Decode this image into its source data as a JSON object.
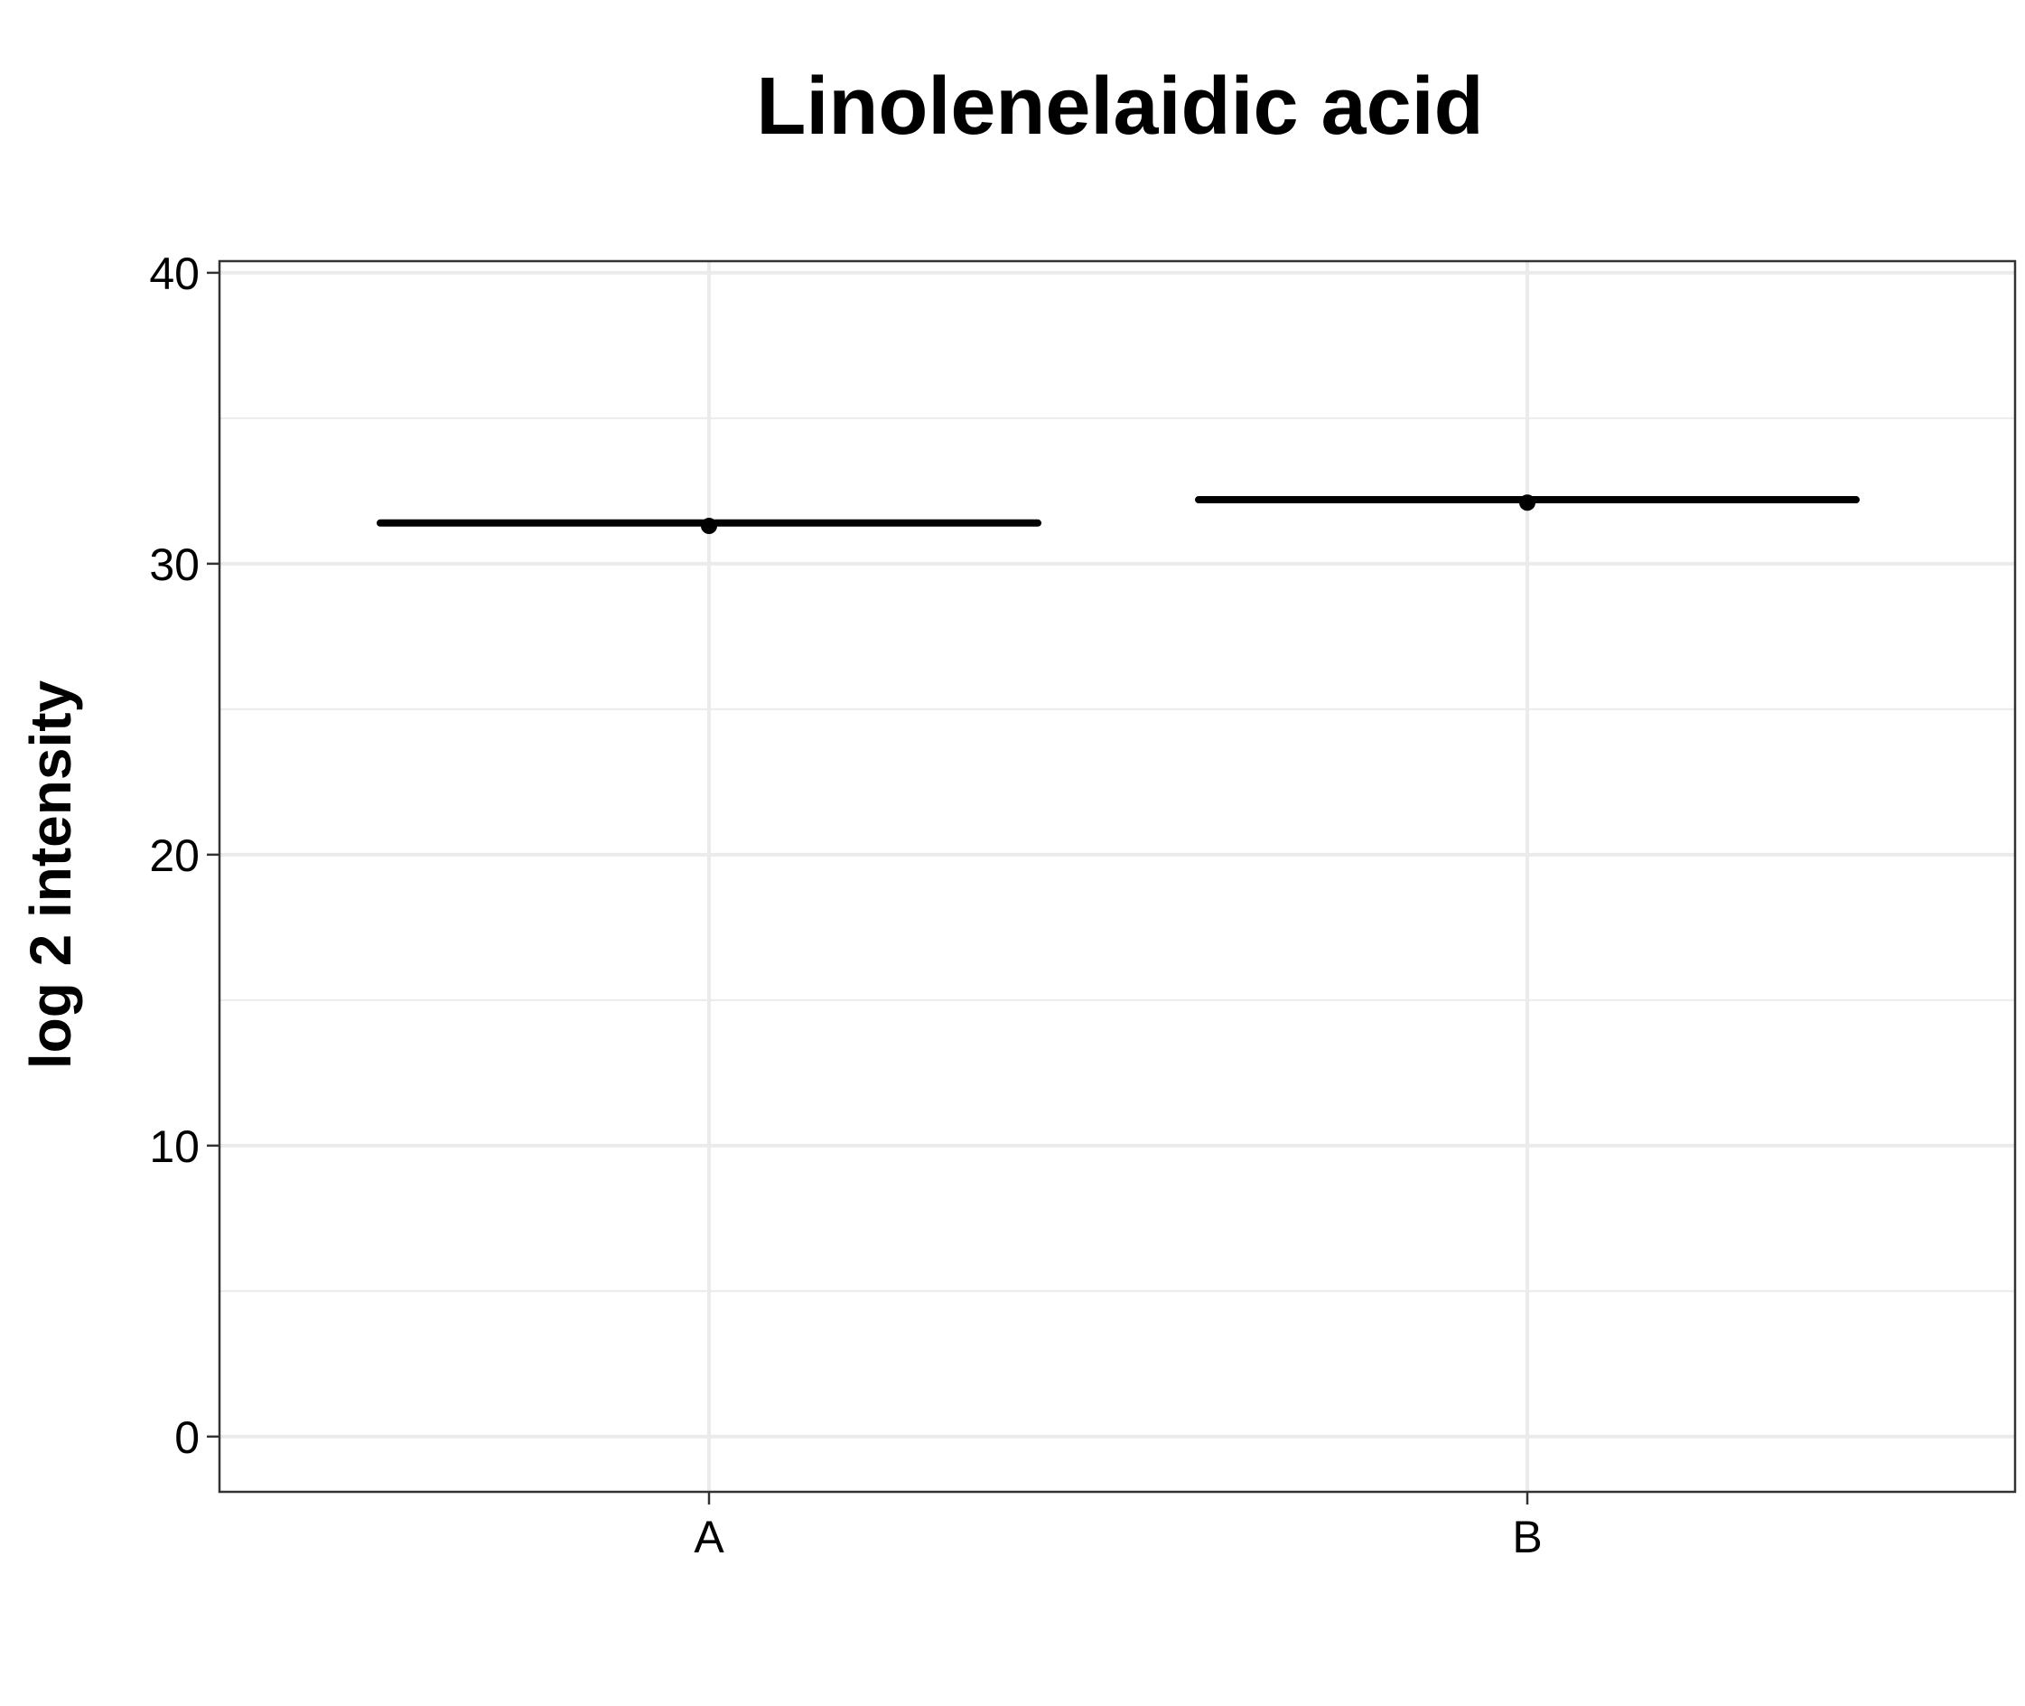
{
  "chart_data": {
    "type": "scatter",
    "title": "Linolenelaidic acid",
    "xlabel": "",
    "ylabel": "log 2 intensity",
    "categories": [
      "A",
      "B"
    ],
    "series": [
      {
        "values": [
          31.3,
          32.1
        ]
      }
    ],
    "median_lines": [
      31.4,
      32.2
    ],
    "ylim": [
      -1.9,
      40.4
    ],
    "yticks": [
      0,
      10,
      20,
      30,
      40
    ],
    "grid": true,
    "legend": "none",
    "colors": {
      "marks": "#000000",
      "grid": "#ebebeb",
      "panel_border": "#333333"
    }
  }
}
